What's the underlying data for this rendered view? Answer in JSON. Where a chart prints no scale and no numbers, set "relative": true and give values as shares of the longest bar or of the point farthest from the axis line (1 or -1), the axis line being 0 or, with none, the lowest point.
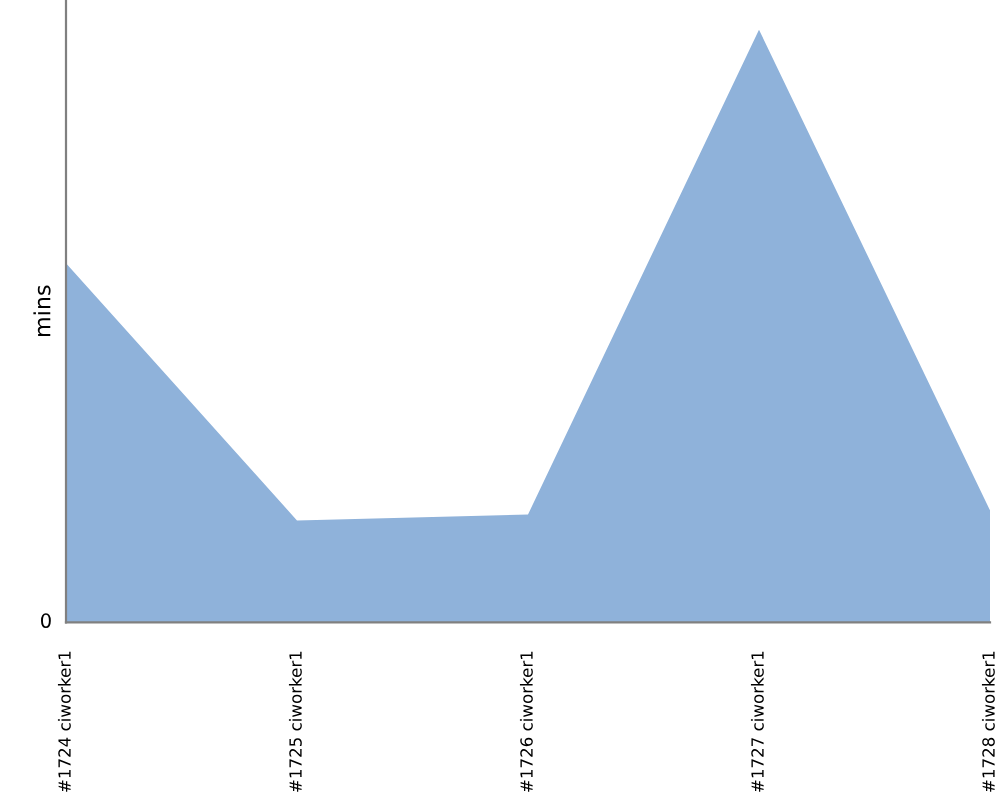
{
  "chart_data": {
    "type": "area",
    "relative": true,
    "ylabel": "mins",
    "categories": [
      "#1724 ciworker1",
      "#1725 ciworker1",
      "#1726 ciworker1",
      "#1727 ciworker1",
      "#1728 ciworker1"
    ],
    "series": [
      {
        "color": "#8fb2da",
        "values": [
          0.606,
          0.172,
          0.182,
          1,
          0.189
        ]
      }
    ],
    "annotations": [
      "0"
    ],
    "grid": false,
    "legend": false
  }
}
